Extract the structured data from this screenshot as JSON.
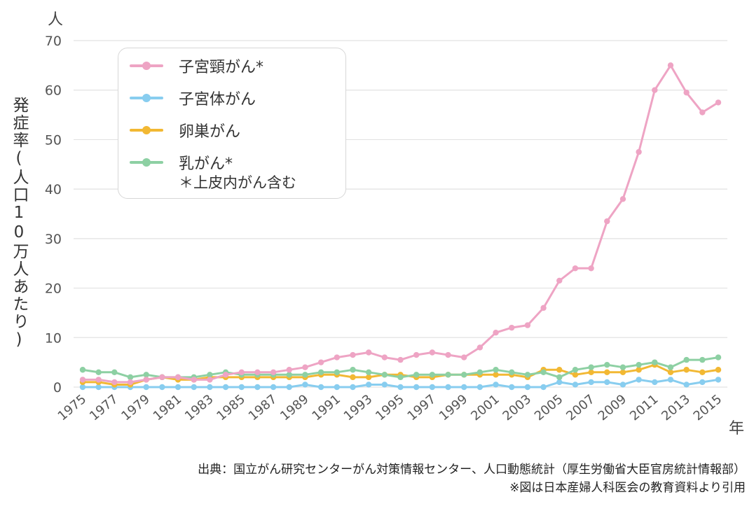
{
  "chart_data": {
    "type": "line",
    "ylabel": "発症率(人口10万人あたり)",
    "yunit": "人",
    "xunit": "年",
    "ylim": [
      0,
      70
    ],
    "yticks": [
      0,
      10,
      20,
      30,
      40,
      50,
      60,
      70
    ],
    "xlim": [
      1975,
      2015
    ],
    "xticks": [
      1975,
      1977,
      1979,
      1981,
      1983,
      1985,
      1987,
      1989,
      1991,
      1993,
      1995,
      1997,
      1999,
      2001,
      2003,
      2005,
      2007,
      2009,
      2011,
      2013,
      2015
    ],
    "grid": true,
    "legend_position": "top-left",
    "x": [
      1975,
      1976,
      1977,
      1978,
      1979,
      1980,
      1981,
      1982,
      1983,
      1984,
      1985,
      1986,
      1987,
      1988,
      1989,
      1990,
      1991,
      1992,
      1993,
      1994,
      1995,
      1996,
      1997,
      1998,
      1999,
      2000,
      2001,
      2002,
      2003,
      2004,
      2005,
      2006,
      2007,
      2008,
      2009,
      2010,
      2011,
      2012,
      2013,
      2014,
      2015
    ],
    "series": [
      {
        "name": "子宮頸がん*",
        "color": "#eea4c4",
        "values": [
          1.5,
          1.5,
          1.0,
          1.0,
          1.5,
          2.0,
          2.0,
          1.5,
          1.5,
          2.5,
          3.0,
          3.0,
          3.0,
          3.5,
          4.0,
          5.0,
          6.0,
          6.5,
          7.0,
          6.0,
          5.5,
          6.5,
          7.0,
          6.5,
          6.0,
          8.0,
          11.0,
          12.0,
          12.5,
          16.0,
          21.5,
          24.0,
          24.0,
          33.5,
          38.0,
          47.5,
          60.0,
          65.0,
          59.5,
          55.5,
          57.5
        ]
      },
      {
        "name": "子宮体がん",
        "color": "#88cdef",
        "values": [
          0.0,
          0.0,
          0.0,
          0.0,
          0.0,
          0.0,
          0.0,
          0.0,
          0.0,
          0.0,
          0.0,
          0.0,
          0.0,
          0.0,
          0.5,
          0.0,
          0.0,
          0.0,
          0.5,
          0.5,
          0.0,
          0.0,
          0.0,
          0.0,
          0.0,
          0.0,
          0.5,
          0.0,
          0.0,
          0.0,
          1.0,
          0.5,
          1.0,
          1.0,
          0.5,
          1.5,
          1.0,
          1.5,
          0.5,
          1.0,
          1.5
        ]
      },
      {
        "name": "卵巣がん",
        "color": "#f2b833",
        "values": [
          1.0,
          1.0,
          0.5,
          0.5,
          1.5,
          2.0,
          1.5,
          1.5,
          2.0,
          2.0,
          2.0,
          2.0,
          2.0,
          2.0,
          2.0,
          2.5,
          2.5,
          2.0,
          2.0,
          2.5,
          2.5,
          2.0,
          2.0,
          2.5,
          2.5,
          2.5,
          2.5,
          2.5,
          2.0,
          3.5,
          3.5,
          2.5,
          3.0,
          3.0,
          3.0,
          3.5,
          4.5,
          3.0,
          3.5,
          3.0,
          3.5
        ]
      },
      {
        "name": "乳がん*",
        "color": "#8dd0a3",
        "values": [
          3.5,
          3.0,
          3.0,
          2.0,
          2.5,
          2.0,
          2.0,
          2.0,
          2.5,
          3.0,
          2.5,
          2.5,
          2.5,
          2.5,
          2.5,
          3.0,
          3.0,
          3.5,
          3.0,
          2.5,
          2.0,
          2.5,
          2.5,
          2.5,
          2.5,
          3.0,
          3.5,
          3.0,
          2.5,
          3.0,
          2.0,
          3.5,
          4.0,
          4.5,
          4.0,
          4.5,
          5.0,
          4.0,
          5.5,
          5.5,
          6.0
        ]
      }
    ],
    "legend_note": "＊上皮内がん含む"
  },
  "source": {
    "line1": "出典：国立がん研究センターがん対策情報センター、人口動態統計（厚生労働省大臣官房統計情報部）",
    "line2": "※図は日本産婦人科医会の教育資料より引用"
  }
}
